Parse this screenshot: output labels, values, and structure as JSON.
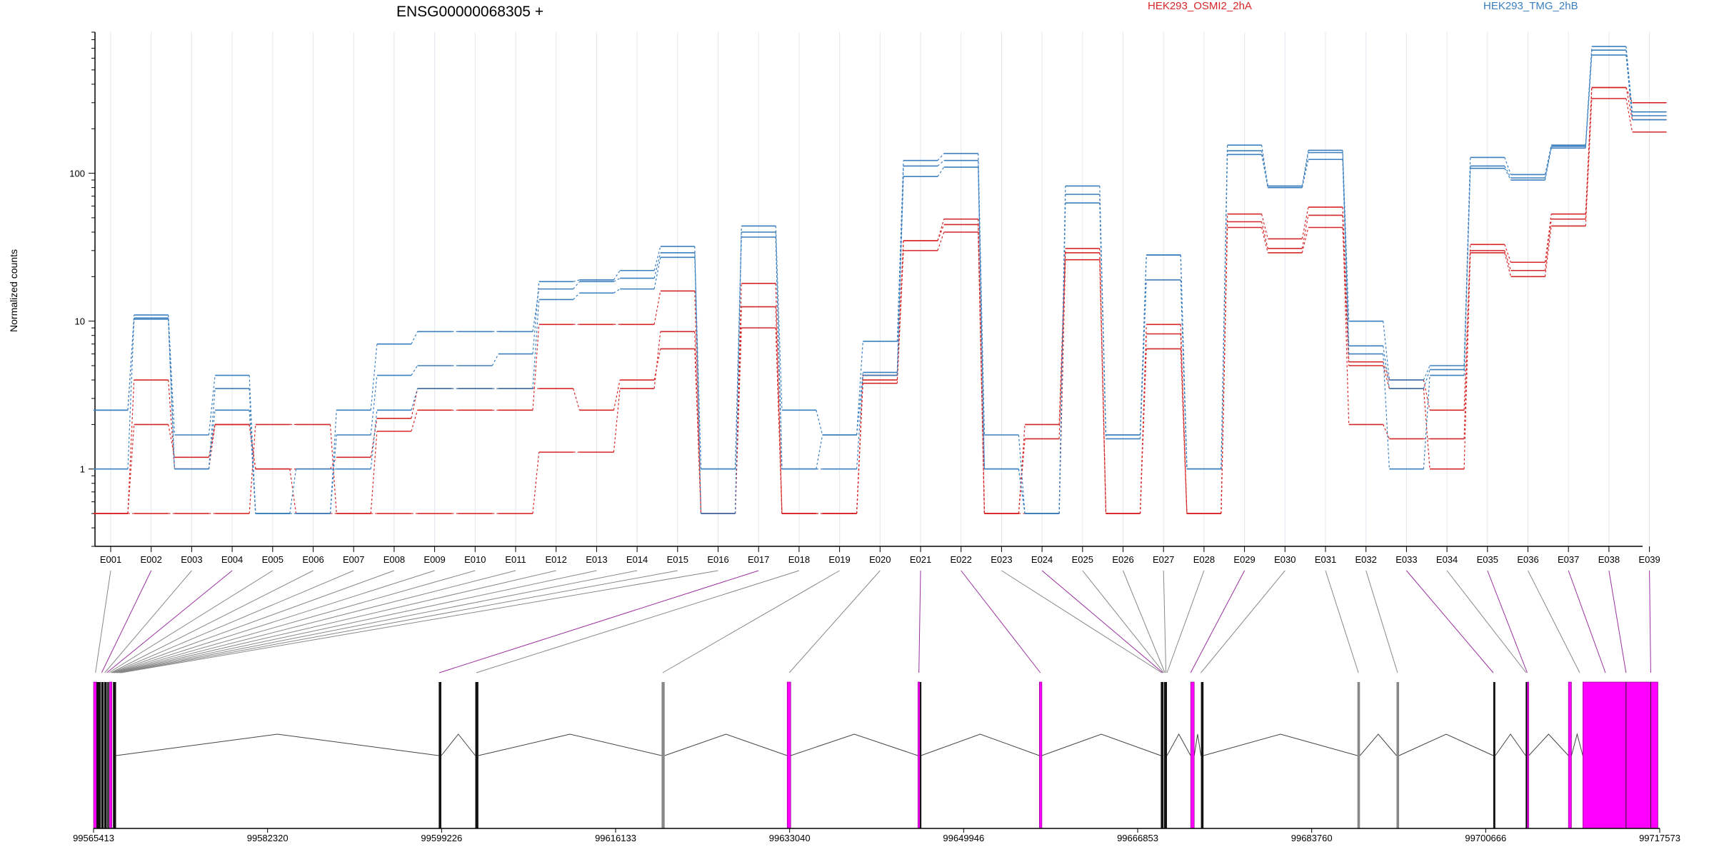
{
  "chart_data": {
    "type": "line",
    "title": "ENSG00000068305 +",
    "ylabel": "Normalized counts",
    "xlabel": "",
    "yscale": "log",
    "yrange": [
      0.3,
      900
    ],
    "yticks": [
      1,
      10,
      100
    ],
    "ytick_labels": [
      "1",
      "10",
      "100"
    ],
    "grid": "vertical",
    "legend_position": "top",
    "colors": {
      "HEK293_OSMI2_2hA": "#d62728",
      "HEK293_TMG_2hB": "#3b7fbf",
      "highlight": "#ff00ff",
      "connector_gray": "#888888",
      "connector_purple": "#9b30a0"
    },
    "categories": [
      "E001",
      "E002",
      "E003",
      "E004",
      "E005",
      "E006",
      "E007",
      "E008",
      "E009",
      "E010",
      "E011",
      "E012",
      "E013",
      "E014",
      "E015",
      "E016",
      "E017",
      "E018",
      "E019",
      "E020",
      "E021",
      "E022",
      "E023",
      "E024",
      "E025",
      "E026",
      "E027",
      "E028",
      "E029",
      "E030",
      "E031",
      "E032",
      "E033",
      "E034",
      "E035",
      "E036",
      "E037",
      "E038",
      "E039"
    ],
    "zero_floor": 0.5,
    "series": [
      {
        "name": "HEK293_OSMI2_2hA",
        "group": "HEK293_OSMI2_2hA",
        "values": [
          0,
          4.0,
          1.0,
          2.0,
          1.0,
          0,
          0,
          1.8,
          2.5,
          2.5,
          2.5,
          9.5,
          9.5,
          9.5,
          16,
          0,
          18,
          0,
          0,
          4.3,
          35,
          49,
          0,
          2.0,
          31,
          0,
          9.5,
          0,
          53,
          36,
          59,
          5.3,
          4.0,
          2.5,
          33,
          25,
          53,
          380,
          300
        ]
      },
      {
        "name": "HEK293_OSMI2_2hA",
        "group": "HEK293_OSMI2_2hA",
        "values": [
          0,
          0,
          0,
          0,
          2.0,
          2.0,
          0,
          0,
          0,
          0,
          0,
          1.3,
          1.3,
          3.5,
          8.5,
          0,
          12.5,
          0,
          0,
          4.0,
          35,
          45,
          0,
          1.6,
          29,
          0,
          8.2,
          0,
          47,
          31,
          52,
          2.0,
          1.6,
          1.6,
          30,
          22,
          49,
          380,
          230
        ]
      },
      {
        "name": "HEK293_OSMI2_2hA",
        "group": "HEK293_OSMI2_2hA",
        "values": [
          0,
          2.0,
          1.2,
          2.0,
          1.0,
          1.0,
          1.2,
          2.2,
          3.5,
          3.5,
          3.5,
          3.5,
          2.5,
          4.0,
          6.5,
          0,
          9.0,
          0,
          0,
          3.8,
          30,
          40,
          0,
          0,
          26,
          0,
          6.5,
          0,
          43,
          29,
          43,
          5.0,
          3.5,
          1.0,
          29,
          20,
          44,
          320,
          190
        ]
      },
      {
        "name": "HEK293_TMG_2hB",
        "group": "HEK293_TMG_2hB",
        "values": [
          2.5,
          11.0,
          1.7,
          4.3,
          0,
          0,
          1.7,
          4.3,
          5.0,
          5.0,
          6.0,
          18.5,
          19,
          22,
          32,
          0,
          44,
          2.5,
          1.7,
          7.3,
          122,
          136,
          1.7,
          0,
          82,
          1.7,
          28,
          1.0,
          155,
          82,
          143,
          10.0,
          4.0,
          5.0,
          128,
          98,
          155,
          720,
          260
        ]
      },
      {
        "name": "HEK293_TMG_2hB",
        "group": "HEK293_TMG_2hB",
        "values": [
          2.5,
          10.5,
          1.0,
          3.5,
          0,
          0,
          2.5,
          7.0,
          8.5,
          8.5,
          8.5,
          16.5,
          18.5,
          19.5,
          29,
          1.0,
          40,
          1.0,
          1.7,
          4.5,
          112,
          122,
          1.0,
          0,
          72,
          1.7,
          28,
          1.0,
          142,
          80,
          138,
          6.8,
          3.5,
          4.7,
          112,
          93,
          152,
          680,
          245
        ]
      },
      {
        "name": "HEK293_TMG_2hB",
        "group": "HEK293_TMG_2hB",
        "values": [
          1.0,
          10.3,
          1.0,
          2.5,
          0,
          1.0,
          1.0,
          2.5,
          3.5,
          3.5,
          3.5,
          14,
          15.5,
          16.5,
          27,
          1.0,
          37,
          1.0,
          1.0,
          4.3,
          95,
          110,
          1.0,
          0,
          63,
          1.6,
          19,
          1.0,
          134,
          80,
          124,
          6.0,
          1.0,
          4.3,
          108,
          90,
          148,
          630,
          230
        ]
      }
    ],
    "connector_colors": [
      "gray",
      "purple",
      "gray",
      "purple",
      "gray",
      "gray",
      "gray",
      "gray",
      "gray",
      "gray",
      "gray",
      "gray",
      "gray",
      "gray",
      "gray",
      "gray",
      "purple",
      "gray",
      "gray",
      "gray",
      "purple",
      "purple",
      "gray",
      "purple",
      "gray",
      "gray",
      "gray",
      "gray",
      "purple",
      "gray",
      "gray",
      "gray",
      "purple",
      "gray",
      "purple",
      "gray",
      "purple",
      "purple",
      "purple"
    ],
    "genomic_axis": {
      "range": [
        99565413,
        99717573
      ],
      "tick_labels": [
        "99565413",
        "99582320",
        "99599226",
        "99616133",
        "99633040",
        "99649946",
        "99666853",
        "99683760",
        "99700666",
        "99717573"
      ]
    },
    "gene_model": {
      "exon_anchor_genomic": [
        99565600,
        99566200,
        99566500,
        99566700,
        99566900,
        99567100,
        99567200,
        99567300,
        99567400,
        99567500,
        99567600,
        99567700,
        99567800,
        99567900,
        99568000,
        99568100,
        99599000,
        99602600,
        99620700,
        99633000,
        99645600,
        99657400,
        99669200,
        99669300,
        99669400,
        99669500,
        99669600,
        99669700,
        99672000,
        99673000,
        99688300,
        99692100,
        99701400,
        99704600,
        99704700,
        99709800,
        99712300,
        99714300,
        99716700
      ],
      "exon_blocks": [
        {
          "start": 99565413,
          "end": 99565700,
          "color": "magenta"
        },
        {
          "start": 99565700,
          "end": 99566100,
          "color": "black"
        },
        {
          "start": 99566150,
          "end": 99566400,
          "color": "black"
        },
        {
          "start": 99566450,
          "end": 99566700,
          "color": "black"
        },
        {
          "start": 99566750,
          "end": 99566900,
          "color": "black"
        },
        {
          "start": 99567300,
          "end": 99567600,
          "color": "black"
        },
        {
          "start": 99566950,
          "end": 99567200,
          "color": "magenta"
        },
        {
          "start": 99598950,
          "end": 99599200,
          "color": "black"
        },
        {
          "start": 99602500,
          "end": 99602800,
          "color": "black"
        },
        {
          "start": 99620600,
          "end": 99620900,
          "color": "gray"
        },
        {
          "start": 99632800,
          "end": 99633150,
          "color": "magenta"
        },
        {
          "start": 99645500,
          "end": 99645700,
          "color": "magenta"
        },
        {
          "start": 99645700,
          "end": 99645800,
          "color": "black"
        },
        {
          "start": 99657300,
          "end": 99657550,
          "color": "magenta"
        },
        {
          "start": 99669100,
          "end": 99669350,
          "color": "black"
        },
        {
          "start": 99669400,
          "end": 99669700,
          "color": "black"
        },
        {
          "start": 99672000,
          "end": 99672350,
          "color": "magenta"
        },
        {
          "start": 99673000,
          "end": 99673250,
          "color": "black"
        },
        {
          "start": 99688200,
          "end": 99688450,
          "color": "gray"
        },
        {
          "start": 99692000,
          "end": 99692250,
          "color": "gray"
        },
        {
          "start": 99701400,
          "end": 99701600,
          "color": "black"
        },
        {
          "start": 99704550,
          "end": 99704700,
          "color": "black"
        },
        {
          "start": 99704700,
          "end": 99704850,
          "color": "magenta"
        },
        {
          "start": 99708700,
          "end": 99709000,
          "color": "magenta"
        },
        {
          "start": 99710100,
          "end": 99717400,
          "color": "magenta"
        }
      ],
      "intron_peaks": [
        [
          99567600,
          99598950
        ],
        [
          99599200,
          99602500
        ],
        [
          99602800,
          99620600
        ],
        [
          99620900,
          99632800
        ],
        [
          99633150,
          99645500
        ],
        [
          99645800,
          99657300
        ],
        [
          99657550,
          99669100
        ],
        [
          99669700,
          99672000
        ],
        [
          99672350,
          99673000
        ],
        [
          99673250,
          99688200
        ],
        [
          99688450,
          99692000
        ],
        [
          99692250,
          99701400
        ],
        [
          99701600,
          99704550
        ],
        [
          99704850,
          99708700
        ],
        [
          99709000,
          99710100
        ]
      ]
    }
  }
}
